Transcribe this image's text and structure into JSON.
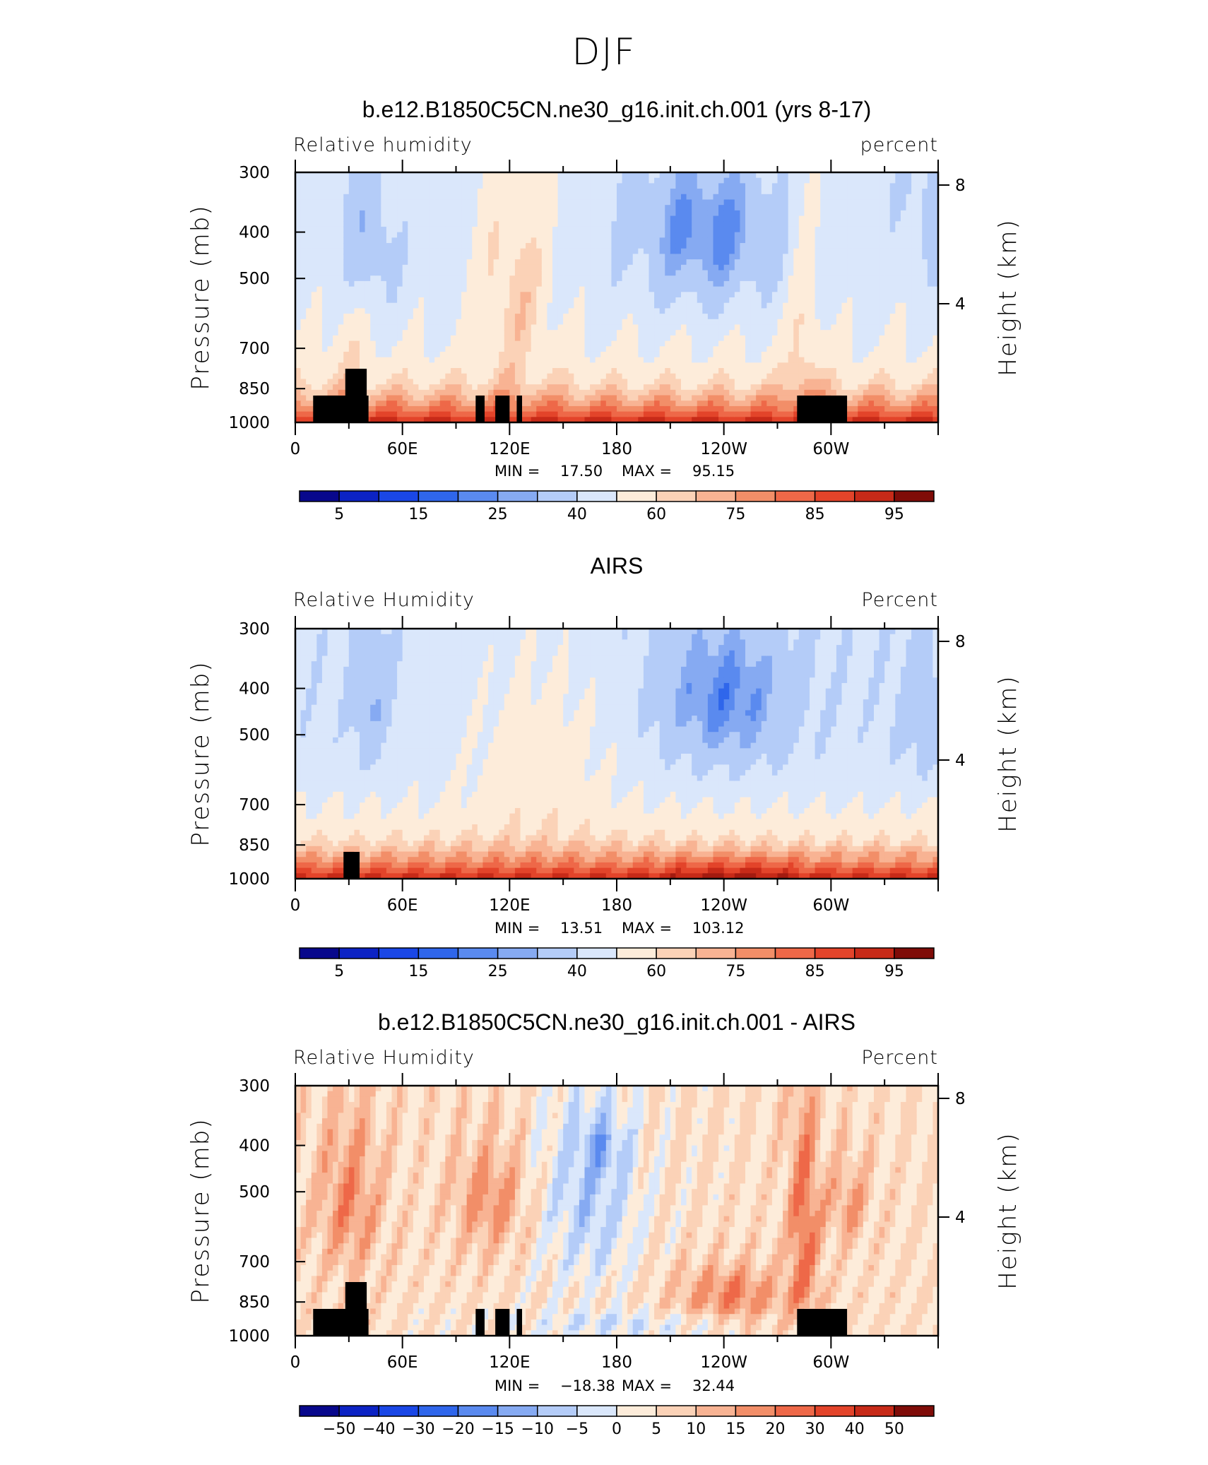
{
  "figure_title": "DJF",
  "colors": {
    "scale": [
      "#08088c",
      "#0c23c4",
      "#1a47e6",
      "#2f66eb",
      "#5a8aef",
      "#86aaf2",
      "#b4ccf8",
      "#dae7fb",
      "#fdecda",
      "#fbd2b7",
      "#f8b393",
      "#f28e68",
      "#ee6848",
      "#e3442a",
      "#c72a18",
      "#a31b10",
      "#7f0c08"
    ],
    "land": "#000000"
  },
  "chart_data": [
    {
      "type": "heatmap",
      "title": "b.e12.B1850C5CN.ne30_g16.init.ch.001 (yrs 8-17)",
      "left_label": "Relative humidity",
      "right_label": "percent",
      "ylabel": "Pressure (mb)",
      "y2label": "Height (km)",
      "x_ticks": [
        "0",
        "60E",
        "120E",
        "180",
        "120W",
        "60W"
      ],
      "y_ticks": [
        "300",
        "400",
        "500",
        "700",
        "850",
        "1000"
      ],
      "y2_ticks": [
        "8",
        "4"
      ],
      "min_label": "MIN =",
      "min": "17.50",
      "max_label": "MAX =",
      "max": "95.15",
      "colorbar_labels": [
        "5",
        "15",
        "25",
        "40",
        "60",
        "75",
        "85",
        "95"
      ],
      "key": "mean"
    },
    {
      "type": "heatmap",
      "title": "AIRS",
      "left_label": "Relative Humidity",
      "right_label": "Percent",
      "ylabel": "Pressure (mb)",
      "y2label": "Height (km)",
      "x_ticks": [
        "0",
        "60E",
        "120E",
        "180",
        "120W",
        "60W"
      ],
      "y_ticks": [
        "300",
        "400",
        "500",
        "700",
        "850",
        "1000"
      ],
      "y2_ticks": [
        "8",
        "4"
      ],
      "min_label": "MIN =",
      "min": "13.51",
      "max_label": "MAX =",
      "max": "103.12",
      "colorbar_labels": [
        "5",
        "15",
        "25",
        "40",
        "60",
        "75",
        "85",
        "95"
      ],
      "key": "airs"
    },
    {
      "type": "heatmap",
      "title": "b.e12.B1850C5CN.ne30_g16.init.ch.001 - AIRS",
      "left_label": "Relative Humidity",
      "right_label": "Percent",
      "ylabel": "Pressure (mb)",
      "y2label": "Height (km)",
      "x_ticks": [
        "0",
        "60E",
        "120E",
        "180",
        "120W",
        "60W"
      ],
      "y_ticks": [
        "300",
        "400",
        "500",
        "700",
        "850",
        "1000"
      ],
      "y2_ticks": [
        "8",
        "4"
      ],
      "min_label": "MIN =",
      "min": "−18.38",
      "max_label": "MAX =",
      "max": "32.44",
      "colorbar_labels": [
        "−50",
        "−40",
        "−30",
        "−20",
        "−15",
        "−10",
        "−5",
        "0",
        "5",
        "10",
        "15",
        "20",
        "30",
        "40",
        "50"
      ],
      "key": "diff"
    }
  ]
}
